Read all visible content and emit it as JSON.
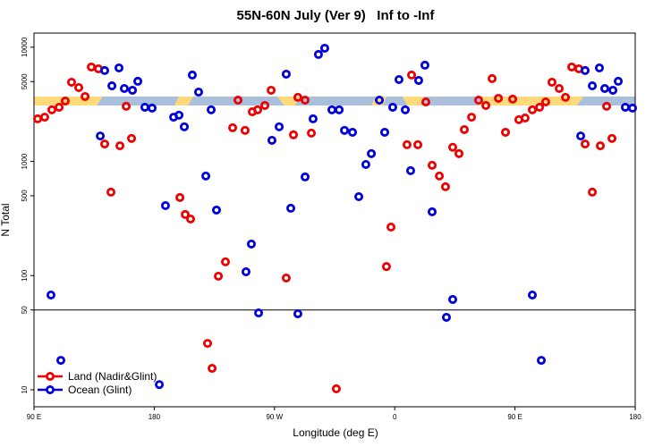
{
  "chart_data": {
    "type": "scatter",
    "title": "55N-60N July (Ver 9)   Inf to -Inf",
    "x_label": "Longitude (deg E)",
    "y_label": "N Total",
    "xlim": [
      90,
      540
    ],
    "xticks": [
      {
        "value": 90,
        "label": "90 E"
      },
      180,
      {
        "value": 270,
        "label": "90 W"
      },
      {
        "value": 360,
        "label": "0"
      },
      {
        "value": 450,
        "label": "90 E"
      },
      {
        "value": 540,
        "label": "180"
      }
    ],
    "ylim": [
      7.1,
      13300
    ],
    "yticks": [
      10,
      50,
      100,
      500,
      1000,
      5000,
      10000
    ],
    "log_y": true,
    "hline": 50,
    "legend": "lower left",
    "series": [
      {
        "name": "Land (Nadir&Glint)",
        "color": "#ee0000",
        "x": [
          92.7,
          98.0,
          103.4,
          108.8,
          113.4,
          118.1,
          123.5,
          128.2,
          132.9,
          138.2,
          142.9,
          147.6,
          154.3,
          159.0,
          163.0,
          199.2,
          203.2,
          207.2,
          219.9,
          223.3,
          228.0,
          233.3,
          238.7,
          242.7,
          248.0,
          253.4,
          257.4,
          262.8,
          267.5,
          278.8,
          284.2,
          287.5,
          292.9,
          297.6,
          316.3,
          353.8,
          357.2,
          369.2,
          372.6,
          377.3,
          383.3,
          388.0,
          393.4,
          398.0,
          403.4,
          408.1,
          412.1,
          417.5,
          422.8,
          428.2,
          432.9,
          437.6,
          442.9,
          448.3,
          452.9,
          457.6,
          463.0,
          468.4,
          473.0,
          477.7,
          483.1,
          487.8,
          492.5,
          497.8,
          502.5,
          507.9,
          513.9,
          518.6,
          522.6
        ],
        "values": [
          2360,
          2440,
          2830,
          2980,
          3380,
          4940,
          4430,
          3700,
          6710,
          6470,
          1420,
          538,
          1370,
          3040,
          1590,
          483,
          343,
          313,
          25.5,
          15.4,
          98.8,
          132,
          1970,
          3440,
          1870,
          2720,
          2830,
          3090,
          4200,
          95.2,
          1710,
          3640,
          3440,
          1770,
          10.2,
          120,
          266,
          1400,
          5710,
          1400,
          3320,
          925,
          745,
          600,
          1330,
          1170,
          1900,
          2440,
          3440,
          3090,
          5310,
          3570,
          1800,
          3510,
          2320,
          2400,
          2830,
          2980,
          3320,
          4940,
          4350,
          3640,
          6710,
          6470,
          1420,
          538,
          1370,
          3040,
          1590
        ]
      },
      {
        "name": "Ocean (Glint)",
        "color": "#0000dd",
        "x": [
          102.7,
          110.1,
          139.6,
          142.9,
          148.3,
          153.6,
          157.6,
          163.7,
          167.7,
          173.0,
          178.4,
          183.8,
          188.4,
          194.5,
          198.5,
          202.5,
          208.5,
          213.2,
          218.6,
          222.6,
          226.6,
          248.7,
          252.7,
          258.1,
          268.1,
          273.5,
          278.8,
          282.2,
          287.5,
          292.9,
          298.9,
          302.9,
          307.6,
          313.0,
          318.4,
          322.4,
          328.4,
          333.1,
          338.4,
          342.5,
          348.5,
          352.5,
          358.5,
          363.2,
          367.9,
          371.9,
          377.9,
          382.6,
          388.0,
          398.7,
          403.4,
          463.0,
          469.7,
          499.2,
          502.5,
          507.9,
          513.2,
          517.2,
          523.3,
          527.3,
          532.6,
          538.0
        ],
        "values": [
          67.6,
          18.1,
          1670,
          6250,
          4590,
          6590,
          4350,
          4200,
          5030,
          2980,
          2930,
          11.1,
          410,
          2440,
          2540,
          2010,
          5710,
          4050,
          745,
          2830,
          375,
          108,
          189,
          47.1,
          1530,
          2010,
          5810,
          389,
          46.3,
          731,
          2360,
          8640,
          9800,
          2830,
          2830,
          1870,
          1800,
          491,
          940,
          1170,
          3440,
          1800,
          2980,
          5210,
          2830,
          830,
          5120,
          6960,
          362,
          43.1,
          61.8,
          67.6,
          18.1,
          1670,
          6250,
          4590,
          6590,
          4350,
          4200,
          5030,
          2980,
          2930
        ]
      }
    ]
  }
}
